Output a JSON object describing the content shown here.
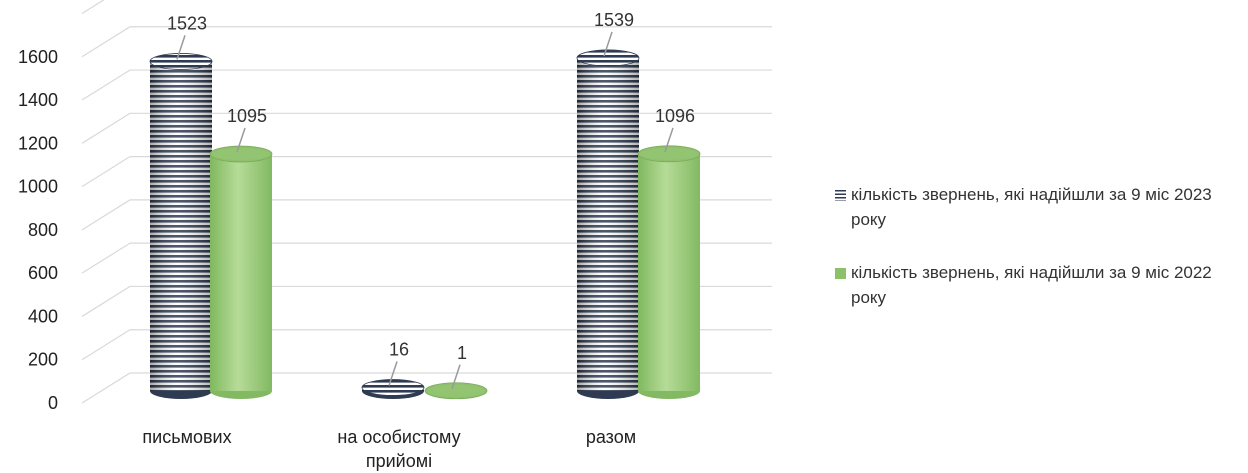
{
  "chart_data": {
    "type": "bar",
    "style": "3d-cylinder",
    "categories": [
      "письмових",
      "на особистому прийомі",
      "разом"
    ],
    "series": [
      {
        "name": "кількість звернень, які надійшли за 9 міс 2023 року",
        "values": [
          1523,
          16,
          1539
        ],
        "color": "#2f3b52",
        "pattern": "horizontal-stripes"
      },
      {
        "name": "кількість звернень, які надійшли за 9 міс 2022 року",
        "values": [
          1095,
          1,
          1096
        ],
        "color": "#8cc16a",
        "pattern": "solid"
      }
    ],
    "y_ticks": [
      0,
      200,
      400,
      600,
      800,
      1000,
      1200,
      1400,
      1600
    ],
    "ylim": [
      0,
      1700
    ],
    "grid": true,
    "legend_position": "right",
    "title": "",
    "xlabel": "",
    "ylabel": ""
  }
}
